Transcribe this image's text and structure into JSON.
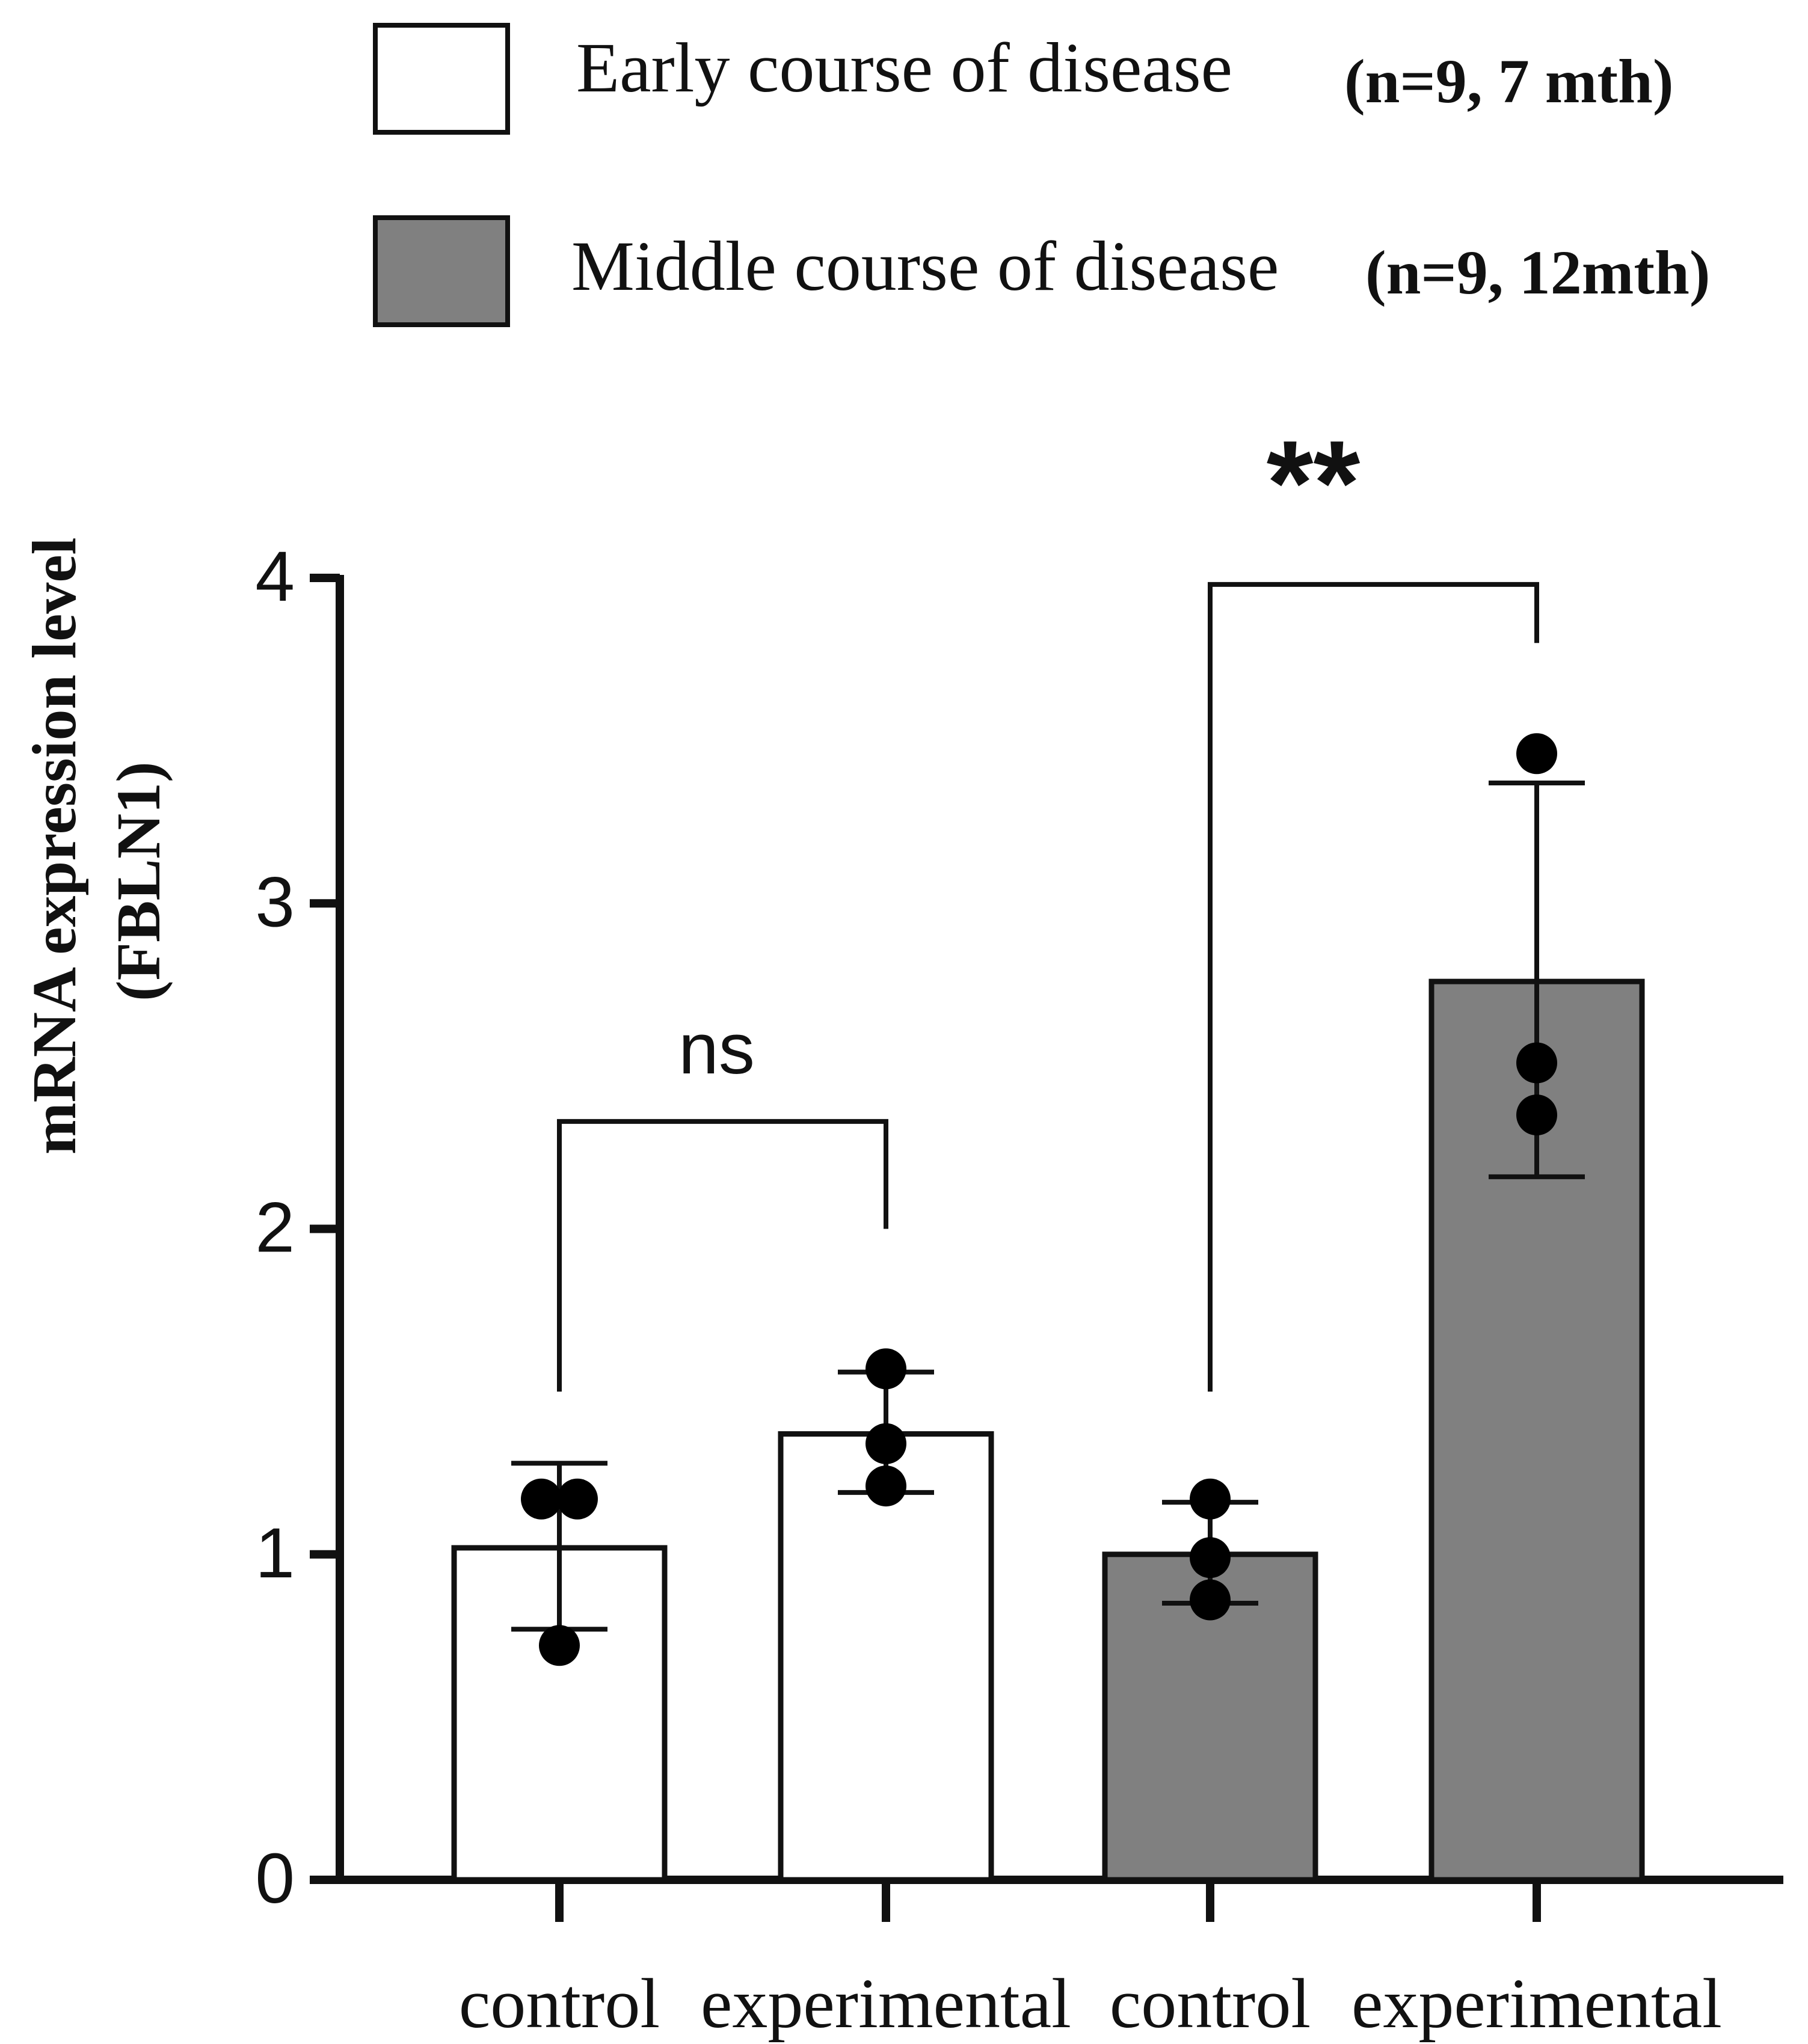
{
  "chart_data": {
    "type": "bar",
    "title": "",
    "xlabel": "",
    "ylabel_line1": "mRNA expression level",
    "ylabel_line2": "(FBLN1)",
    "ylim": [
      0,
      4
    ],
    "yticks": [
      "0",
      "1",
      "2",
      "3",
      "4"
    ],
    "categories": [
      "control",
      "experimental",
      "control",
      "experimental"
    ],
    "series": [
      {
        "name": "Early course of disease",
        "legend_note": "(n=9, 7 mth)",
        "color": "#ffffff",
        "bars": [
          {
            "category": "control",
            "mean": 1.02,
            "err_low": 0.77,
            "err_high": 1.28,
            "points": [
              1.17,
              1.17,
              0.72
            ]
          },
          {
            "category": "experimental",
            "mean": 1.37,
            "err_low": 1.19,
            "err_high": 1.56,
            "points": [
              1.57,
              1.34,
              1.21
            ]
          }
        ]
      },
      {
        "name": "Middle course of disease",
        "legend_note": "(n=9, 12mth)",
        "color": "#808080",
        "bars": [
          {
            "category": "control",
            "mean": 1.0,
            "err_low": 0.85,
            "err_high": 1.16,
            "points": [
              1.17,
              0.99,
              0.86
            ]
          },
          {
            "category": "experimental",
            "mean": 2.76,
            "err_low": 2.16,
            "err_high": 3.37,
            "points": [
              3.46,
              2.51,
              2.35
            ]
          }
        ]
      }
    ],
    "significance": [
      {
        "label": "ns",
        "from_bar": 0,
        "to_bar": 1,
        "bracket_y": 2.33,
        "left_drop_to": 1.5,
        "right_drop_to": 2.0
      },
      {
        "label": "**",
        "from_bar": 2,
        "to_bar": 3,
        "bracket_y": 3.98,
        "left_drop_to": 1.5,
        "right_drop_to": 3.8
      }
    ],
    "legend_position": "top"
  }
}
